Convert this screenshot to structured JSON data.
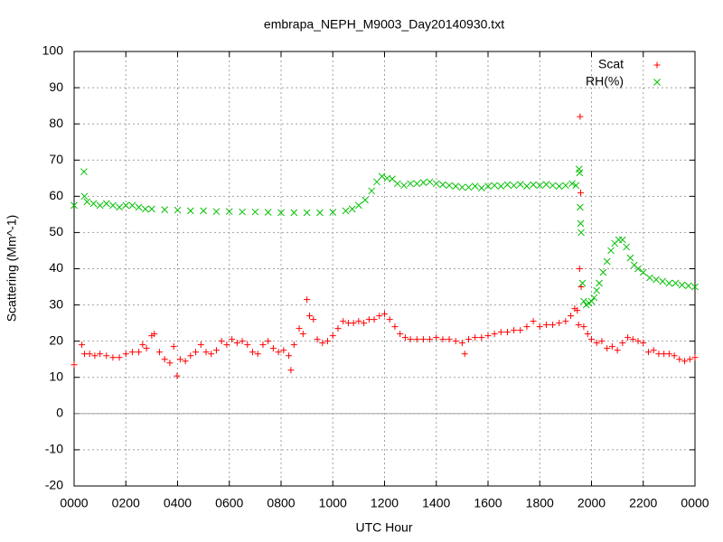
{
  "chart_data": {
    "type": "scatter",
    "title": "embrapa_NEPH_M9003_Day20140930.txt",
    "x_label": "UTC Hour",
    "y_label": "Scattering (Mm^-1)",
    "xlim": [
      0,
      24
    ],
    "xticks": [
      {
        "value": 0,
        "label": "0000"
      },
      {
        "value": 2,
        "label": "0200"
      },
      {
        "value": 4,
        "label": "0400"
      },
      {
        "value": 6,
        "label": "0600"
      },
      {
        "value": 8,
        "label": "0800"
      },
      {
        "value": 10,
        "label": "1000"
      },
      {
        "value": 12,
        "label": "1200"
      },
      {
        "value": 14,
        "label": "1400"
      },
      {
        "value": 16,
        "label": "1600"
      },
      {
        "value": 18,
        "label": "1800"
      },
      {
        "value": 20,
        "label": "2000"
      },
      {
        "value": 22,
        "label": "2200"
      },
      {
        "value": 24,
        "label": "0000"
      }
    ],
    "ylim": [
      -20,
      100
    ],
    "yticks": [
      -20,
      -10,
      0,
      10,
      20,
      30,
      40,
      50,
      60,
      70,
      80,
      90,
      100
    ],
    "grid": true,
    "zeroaxis": true,
    "legend": "top-right",
    "series": [
      {
        "name": "Scat",
        "color": "#ff0000",
        "marker": "plus",
        "x": [
          0,
          0.3,
          0.4,
          0.6,
          0.8,
          1,
          1.25,
          1.5,
          1.75,
          2,
          2.25,
          2.5,
          2.65,
          2.8,
          3,
          3.1,
          3.3,
          3.5,
          3.7,
          3.85,
          3.98,
          4.1,
          4.3,
          4.5,
          4.7,
          4.9,
          5.1,
          5.3,
          5.5,
          5.7,
          5.9,
          6.1,
          6.3,
          6.5,
          6.7,
          6.9,
          7.1,
          7.3,
          7.5,
          7.7,
          7.9,
          8.1,
          8.3,
          8.38,
          8.5,
          8.7,
          8.85,
          9,
          9.1,
          9.25,
          9.4,
          9.6,
          9.8,
          10,
          10.2,
          10.4,
          10.6,
          10.8,
          11,
          11.2,
          11.4,
          11.6,
          11.8,
          12,
          12.2,
          12.4,
          12.6,
          12.8,
          13,
          13.25,
          13.5,
          13.75,
          14,
          14.25,
          14.5,
          14.75,
          15,
          15.1,
          15.25,
          15.5,
          15.75,
          16,
          16.25,
          16.5,
          16.75,
          17,
          17.25,
          17.5,
          17.75,
          18,
          18.25,
          18.5,
          18.75,
          19,
          19.2,
          19.35,
          19.45,
          19.5,
          19.54,
          19.56,
          19.58,
          19.6,
          19.7,
          19.85,
          20,
          20.2,
          20.4,
          20.6,
          20.8,
          21,
          21.2,
          21.4,
          21.6,
          21.8,
          22,
          22.2,
          22.4,
          22.6,
          22.8,
          23,
          23.2,
          23.4,
          23.6,
          23.8,
          24
        ],
        "values": [
          13.5,
          19,
          16.5,
          16.5,
          16,
          16.5,
          16,
          15.5,
          15.5,
          16.5,
          17,
          17,
          19,
          18,
          21.5,
          22,
          17,
          15,
          14,
          18.5,
          10.4,
          15,
          14.5,
          16,
          17,
          19,
          17,
          16.5,
          17.5,
          20,
          19,
          20.5,
          19.5,
          20,
          19,
          17,
          16.5,
          19,
          20,
          18,
          17,
          17.5,
          16,
          12,
          19,
          23.5,
          22,
          31.5,
          27,
          26,
          20.5,
          19.5,
          20,
          21.5,
          23.5,
          25.5,
          25,
          25,
          25.5,
          25,
          26,
          26,
          27,
          27.5,
          26,
          24,
          22,
          21,
          20.5,
          20.5,
          20.5,
          20.5,
          21,
          20.5,
          20.5,
          20,
          19.5,
          16.5,
          20.5,
          21,
          21,
          21.5,
          22,
          22.5,
          22.5,
          23,
          23,
          24,
          25.5,
          24,
          24.5,
          24.5,
          25,
          25.5,
          27,
          29,
          28.5,
          24.5,
          40,
          82,
          61,
          35,
          24,
          22,
          20.5,
          19.5,
          20,
          18,
          18.5,
          17.5,
          19.5,
          21,
          20.5,
          20,
          19.5,
          17,
          17.5,
          16.5,
          16.5,
          16.5,
          16,
          15,
          14.5,
          15,
          15.5
        ]
      },
      {
        "name": "RH(%)",
        "color": "#00c000",
        "marker": "cross",
        "x": [
          0,
          0.38,
          0.4,
          0.5,
          0.75,
          1,
          1.25,
          1.5,
          1.75,
          2,
          2.25,
          2.5,
          2.75,
          3,
          3.5,
          4,
          4.5,
          5,
          5.5,
          6,
          6.5,
          7,
          7.5,
          8,
          8.5,
          9,
          9.5,
          10,
          10.5,
          10.75,
          11,
          11.25,
          11.5,
          11.7,
          11.9,
          12.1,
          12.3,
          12.5,
          12.75,
          13,
          13.25,
          13.5,
          13.75,
          14,
          14.25,
          14.5,
          14.75,
          15,
          15.25,
          15.5,
          15.75,
          16,
          16.25,
          16.5,
          16.75,
          17,
          17.25,
          17.5,
          17.75,
          18,
          18.25,
          18.5,
          18.75,
          19,
          19.25,
          19.4,
          19.52,
          19.54,
          19.56,
          19.58,
          19.6,
          19.65,
          19.7,
          19.8,
          19.9,
          20,
          20.1,
          20.2,
          20.3,
          20.45,
          20.6,
          20.75,
          20.9,
          21.05,
          21.2,
          21.35,
          21.5,
          21.65,
          21.8,
          22,
          22.25,
          22.5,
          22.75,
          23,
          23.25,
          23.5,
          23.75,
          24
        ],
        "values": [
          57.5,
          66.8,
          60,
          58.5,
          58,
          57.5,
          58,
          57.5,
          57,
          57.5,
          57.5,
          57,
          56.5,
          56.5,
          56.3,
          56.2,
          56,
          56,
          55.8,
          55.8,
          55.7,
          55.7,
          55.6,
          55.5,
          55.5,
          55.5,
          55.5,
          55.6,
          56,
          56.5,
          57.5,
          59,
          61.5,
          64,
          65.5,
          65,
          64.8,
          63.5,
          63,
          63.5,
          63.5,
          63.8,
          64,
          63.5,
          63.2,
          63,
          62.8,
          62.5,
          62.5,
          62.8,
          62.3,
          62.8,
          63,
          62.8,
          63.2,
          63,
          63.3,
          62.8,
          63.2,
          63,
          63.3,
          63,
          62.8,
          63,
          63.5,
          63,
          67.5,
          66.5,
          57,
          52.5,
          50,
          36,
          31,
          30,
          30.5,
          31,
          32,
          34,
          36,
          39,
          42,
          45,
          47,
          48,
          48,
          46,
          43,
          41,
          40,
          39,
          37.5,
          37,
          36.5,
          36,
          36,
          35.5,
          35.3,
          35
        ]
      }
    ]
  }
}
